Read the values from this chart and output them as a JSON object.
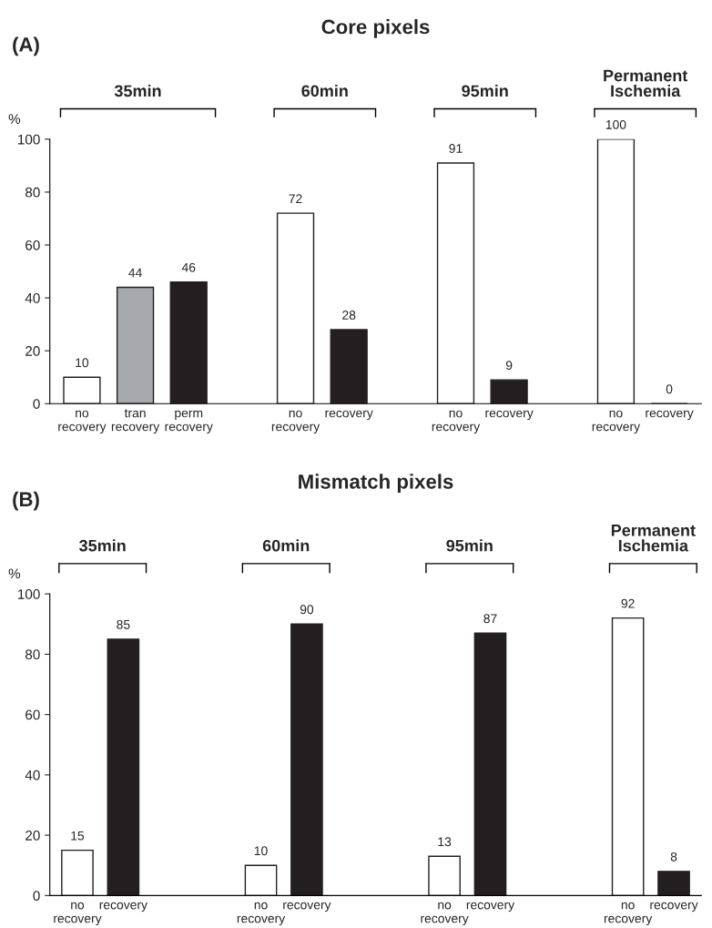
{
  "chart_data": [
    {
      "type": "bar",
      "title": "Core pixels",
      "ylabel": "%",
      "annotations": [
        "(A)",
        "35min",
        "60min",
        "95min",
        "Permanent\nIschemia"
      ],
      "categories": [
        "no\nrecovery",
        "tran\nrecovery",
        "perm\nrecovery",
        null,
        "no\nrecovery",
        "recovery",
        null,
        "no\nrecovery",
        "recovery",
        null,
        "no\nrecovery",
        "recovery"
      ],
      "values": [
        10,
        44,
        46,
        null,
        72,
        28,
        null,
        91,
        9,
        null,
        100,
        0
      ],
      "colors": [
        "#ffffff",
        "#a7a9ac",
        "#231f20",
        null,
        "#ffffff",
        "#231f20",
        null,
        "#ffffff",
        "#231f20",
        null,
        "#ffffff",
        "#231f20"
      ],
      "ylim": [
        0,
        100
      ],
      "yticks": [
        0,
        20,
        40,
        60,
        80,
        100
      ],
      "data_labels": true,
      "grid": false,
      "legend": false
    },
    {
      "type": "bar",
      "title": "Mismatch pixels",
      "ylabel": "%",
      "annotations": [
        "(B)",
        "35min",
        "60min",
        "95min",
        "Permanent\nIschemia"
      ],
      "categories": [
        "no\nrecovery",
        "recovery",
        null,
        null,
        "no\nrecovery",
        "recovery",
        null,
        null,
        "no\nrecovery",
        "recovery",
        null,
        null,
        "no\nrecovery",
        "recovery"
      ],
      "values": [
        15,
        85,
        null,
        null,
        10,
        90,
        null,
        null,
        13,
        87,
        null,
        null,
        92,
        8
      ],
      "colors": [
        "#ffffff",
        "#231f20",
        null,
        null,
        "#ffffff",
        "#231f20",
        null,
        null,
        "#ffffff",
        "#231f20",
        null,
        null,
        "#ffffff",
        "#231f20"
      ],
      "ylim": [
        0,
        100
      ],
      "yticks": [
        0,
        20,
        40,
        60,
        80,
        100
      ],
      "data_labels": true,
      "grid": false,
      "legend": false
    }
  ]
}
